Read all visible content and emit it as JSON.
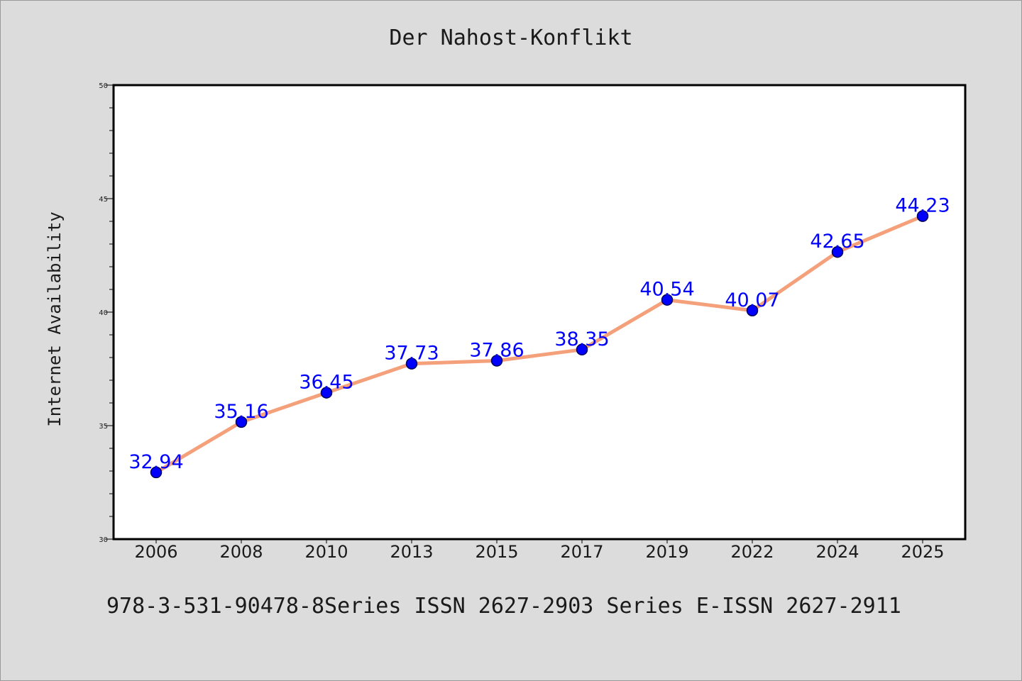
{
  "chart_data": {
    "type": "line",
    "title": "Der Nahost-Konflikt",
    "xlabel": "",
    "ylabel": "Internet Availability",
    "categories": [
      "2006",
      "2008",
      "2010",
      "2013",
      "2015",
      "2017",
      "2019",
      "2022",
      "2024",
      "2025"
    ],
    "series": [
      {
        "values": [
          32.94,
          35.16,
          36.45,
          37.73,
          37.86,
          38.35,
          40.54,
          40.07,
          42.65,
          44.23
        ]
      }
    ],
    "ylim": [
      30,
      50
    ],
    "yticks": [
      "30",
      "35",
      "40",
      "45",
      "50"
    ],
    "grid": false,
    "legend": "none",
    "footer": "978-3-531-90478-8Series ISSN 2627-2903 Series E-ISSN 2627-2911",
    "colors": {
      "background": "#dcdcdc",
      "plot_area": "#ffffff",
      "line": "#f4a07a",
      "marker": "#0000ff",
      "data_label": "#0000ff",
      "text": "#1a1a1a"
    }
  }
}
